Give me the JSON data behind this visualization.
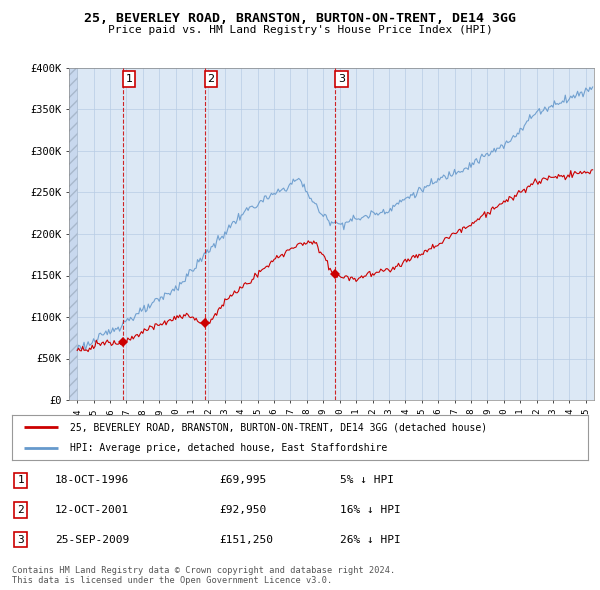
{
  "title1": "25, BEVERLEY ROAD, BRANSTON, BURTON-ON-TRENT, DE14 3GG",
  "title2": "Price paid vs. HM Land Registry's House Price Index (HPI)",
  "plot_bg": "#dce8f5",
  "grid_color": "#b8cce4",
  "sale_prices": [
    69995,
    92950,
    151250
  ],
  "sale_labels": [
    "1",
    "2",
    "3"
  ],
  "legend_line1": "25, BEVERLEY ROAD, BRANSTON, BURTON-ON-TRENT, DE14 3GG (detached house)",
  "legend_line2": "HPI: Average price, detached house, East Staffordshire",
  "table_data": [
    [
      "1",
      "18-OCT-1996",
      "£69,995",
      "5% ↓ HPI"
    ],
    [
      "2",
      "12-OCT-2001",
      "£92,950",
      "16% ↓ HPI"
    ],
    [
      "3",
      "25-SEP-2009",
      "£151,250",
      "26% ↓ HPI"
    ]
  ],
  "footer": "Contains HM Land Registry data © Crown copyright and database right 2024.\nThis data is licensed under the Open Government Licence v3.0.",
  "ylim": [
    0,
    400000
  ],
  "yticks": [
    0,
    50000,
    100000,
    150000,
    200000,
    250000,
    300000,
    350000,
    400000
  ],
  "ytick_labels": [
    "£0",
    "£50K",
    "£100K",
    "£150K",
    "£200K",
    "£250K",
    "£300K",
    "£350K",
    "£400K"
  ],
  "sale_color": "#cc0000",
  "hpi_color": "#6699cc",
  "vline_color": "#cc0000",
  "fig_bg": "#ffffff",
  "sale_years_dec": [
    1996.79,
    2001.79,
    2009.73
  ]
}
